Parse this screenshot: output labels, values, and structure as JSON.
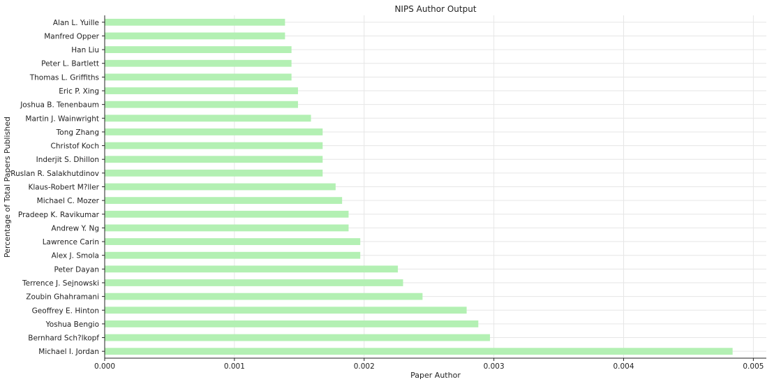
{
  "chart_data": {
    "type": "bar",
    "orientation": "horizontal",
    "title": "NIPS Author Output",
    "xlabel": "Paper Author",
    "ylabel": "Percentage of Total Papers Published",
    "xlim": [
      0,
      0.0051
    ],
    "xticks": [
      "0.000",
      "0.001",
      "0.002",
      "0.003",
      "0.004",
      "0.005"
    ],
    "grid": true,
    "bar_color": "#b3f0b3",
    "categories": [
      "Michael I. Jordan",
      "Bernhard Sch?lkopf",
      "Yoshua Bengio",
      "Geoffrey E. Hinton",
      "Zoubin Ghahramani",
      "Terrence J. Sejnowski",
      "Peter Dayan",
      "Alex J. Smola",
      "Lawrence Carin",
      "Andrew Y. Ng",
      "Pradeep K. Ravikumar",
      "Michael C. Mozer",
      "Klaus-Robert M?ller",
      "Ruslan R. Salakhutdinov",
      "Inderjit S. Dhillon",
      "Christof Koch",
      "Tong Zhang",
      "Martin J. Wainwright",
      "Joshua B. Tenenbaum",
      "Eric P. Xing",
      "Thomas L. Griffiths",
      "Peter L. Bartlett",
      "Han Liu",
      "Manfred Opper",
      "Alan L. Yuille"
    ],
    "values": [
      0.00484,
      0.00297,
      0.00288,
      0.00279,
      0.00245,
      0.0023,
      0.00226,
      0.00197,
      0.00197,
      0.00188,
      0.00188,
      0.00183,
      0.00178,
      0.00168,
      0.00168,
      0.00168,
      0.00168,
      0.00159,
      0.00149,
      0.00149,
      0.00144,
      0.00144,
      0.00144,
      0.00139,
      0.00139
    ]
  }
}
